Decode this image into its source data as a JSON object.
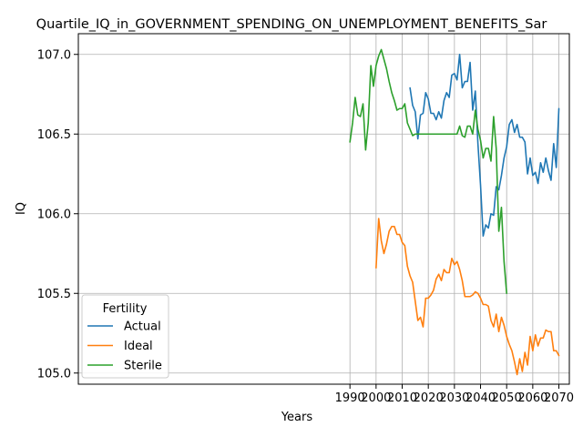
{
  "chart_data": {
    "type": "line",
    "title": "Quartile_IQ_in_GOVERNMENT_SPENDING_ON_UNEMPLOYMENT_BENEFITS_Sar",
    "xlabel": "Years",
    "ylabel": "IQ",
    "xlim": [
      1886,
      2074
    ],
    "ylim": [
      104.93,
      107.13
    ],
    "xticks": [
      1990,
      2000,
      2010,
      2020,
      2030,
      2040,
      2050,
      2060,
      2070
    ],
    "yticks": [
      105.0,
      105.5,
      106.0,
      106.5,
      107.0
    ],
    "xtick_labels": [
      "1990",
      "2000",
      "2010",
      "2020",
      "2030",
      "2040",
      "2050",
      "2060",
      "2070"
    ],
    "ytick_labels": [
      "105.0",
      "105.5",
      "106.0",
      "106.5",
      "107.0"
    ],
    "grid": true,
    "legend": {
      "title": "Fertility",
      "placement": "lower-left"
    },
    "series": [
      {
        "name": "Actual",
        "color": "#1f77b4",
        "x": [
          2013,
          2014,
          2015,
          2016,
          2017,
          2018,
          2019,
          2020,
          2021,
          2022,
          2023,
          2024,
          2025,
          2026,
          2027,
          2028,
          2029,
          2030,
          2031,
          2032,
          2033,
          2034,
          2035,
          2036,
          2037,
          2038,
          2039,
          2040,
          2041,
          2042,
          2043,
          2044,
          2045,
          2046,
          2047,
          2048,
          2049,
          2050,
          2051,
          2052,
          2053,
          2054,
          2055,
          2056,
          2057,
          2058,
          2059,
          2060,
          2061,
          2062,
          2063,
          2064,
          2065,
          2066,
          2067,
          2068,
          2069,
          2070
        ],
        "y": [
          106.79,
          106.68,
          106.64,
          106.47,
          106.62,
          106.63,
          106.76,
          106.72,
          106.63,
          106.63,
          106.59,
          106.64,
          106.6,
          106.71,
          106.76,
          106.73,
          106.87,
          106.88,
          106.84,
          107.0,
          106.79,
          106.83,
          106.83,
          106.95,
          106.65,
          106.77,
          106.44,
          106.18,
          105.86,
          105.93,
          105.91,
          106.0,
          105.99,
          106.17,
          106.15,
          106.24,
          106.35,
          106.42,
          106.56,
          106.59,
          106.51,
          106.56,
          106.48,
          106.48,
          106.45,
          106.25,
          106.35,
          106.24,
          106.26,
          106.19,
          106.32,
          106.26,
          106.35,
          106.27,
          106.21,
          106.44,
          106.29,
          106.66
        ]
      },
      {
        "name": "Ideal",
        "color": "#ff7f0e",
        "x": [
          2000,
          2001,
          2002,
          2003,
          2004,
          2005,
          2006,
          2007,
          2008,
          2009,
          2010,
          2011,
          2012,
          2013,
          2014,
          2015,
          2016,
          2017,
          2018,
          2019,
          2020,
          2021,
          2022,
          2023,
          2024,
          2025,
          2026,
          2027,
          2028,
          2029,
          2030,
          2031,
          2032,
          2033,
          2034,
          2035,
          2036,
          2037,
          2038,
          2039,
          2040,
          2041,
          2042,
          2043,
          2044,
          2045,
          2046,
          2047,
          2048,
          2049,
          2050,
          2051,
          2052,
          2053,
          2054,
          2055,
          2056,
          2057,
          2058,
          2059,
          2060,
          2061,
          2062,
          2063,
          2064,
          2065,
          2066,
          2067,
          2068,
          2069,
          2070
        ],
        "y": [
          105.66,
          105.97,
          105.83,
          105.75,
          105.81,
          105.89,
          105.92,
          105.92,
          105.87,
          105.87,
          105.82,
          105.8,
          105.67,
          105.61,
          105.57,
          105.45,
          105.33,
          105.35,
          105.29,
          105.47,
          105.47,
          105.49,
          105.52,
          105.59,
          105.62,
          105.58,
          105.65,
          105.63,
          105.63,
          105.72,
          105.68,
          105.7,
          105.65,
          105.58,
          105.48,
          105.48,
          105.48,
          105.49,
          105.51,
          105.5,
          105.47,
          105.43,
          105.43,
          105.42,
          105.33,
          105.29,
          105.37,
          105.26,
          105.35,
          105.3,
          105.23,
          105.18,
          105.14,
          105.07,
          104.99,
          105.09,
          105.01,
          105.13,
          105.05,
          105.23,
          105.14,
          105.24,
          105.17,
          105.22,
          105.22,
          105.27,
          105.26,
          105.26,
          105.14,
          105.14,
          105.11
        ]
      },
      {
        "name": "Sterile",
        "color": "#2ca02c",
        "x": [
          1990,
          1991,
          1992,
          1993,
          1994,
          1995,
          1996,
          1997,
          1998,
          1999,
          2000,
          2001,
          2002,
          2003,
          2004,
          2005,
          2006,
          2007,
          2008,
          2009,
          2010,
          2011,
          2012,
          2013,
          2014,
          2015,
          2016,
          2017,
          2018,
          2019,
          2020,
          2021,
          2022,
          2023,
          2024,
          2025,
          2026,
          2027,
          2028,
          2029,
          2030,
          2031,
          2032,
          2033,
          2034,
          2035,
          2036,
          2037,
          2038,
          2039,
          2040,
          2041,
          2042,
          2043,
          2044,
          2045,
          2046,
          2047,
          2048,
          2049,
          2050
        ],
        "y": [
          106.45,
          106.57,
          106.73,
          106.62,
          106.61,
          106.69,
          106.4,
          106.57,
          106.93,
          106.8,
          106.93,
          106.99,
          107.03,
          106.97,
          106.91,
          106.83,
          106.76,
          106.71,
          106.65,
          106.66,
          106.66,
          106.69,
          106.57,
          106.53,
          106.49,
          106.5,
          106.5,
          106.5,
          106.5,
          106.5,
          106.5,
          106.5,
          106.5,
          106.5,
          106.5,
          106.5,
          106.5,
          106.5,
          106.5,
          106.5,
          106.5,
          106.5,
          106.55,
          106.49,
          106.48,
          106.55,
          106.55,
          106.5,
          106.65,
          106.53,
          106.46,
          106.35,
          106.41,
          106.41,
          106.33,
          106.61,
          106.41,
          105.89,
          106.04,
          105.7,
          105.5
        ]
      }
    ]
  }
}
